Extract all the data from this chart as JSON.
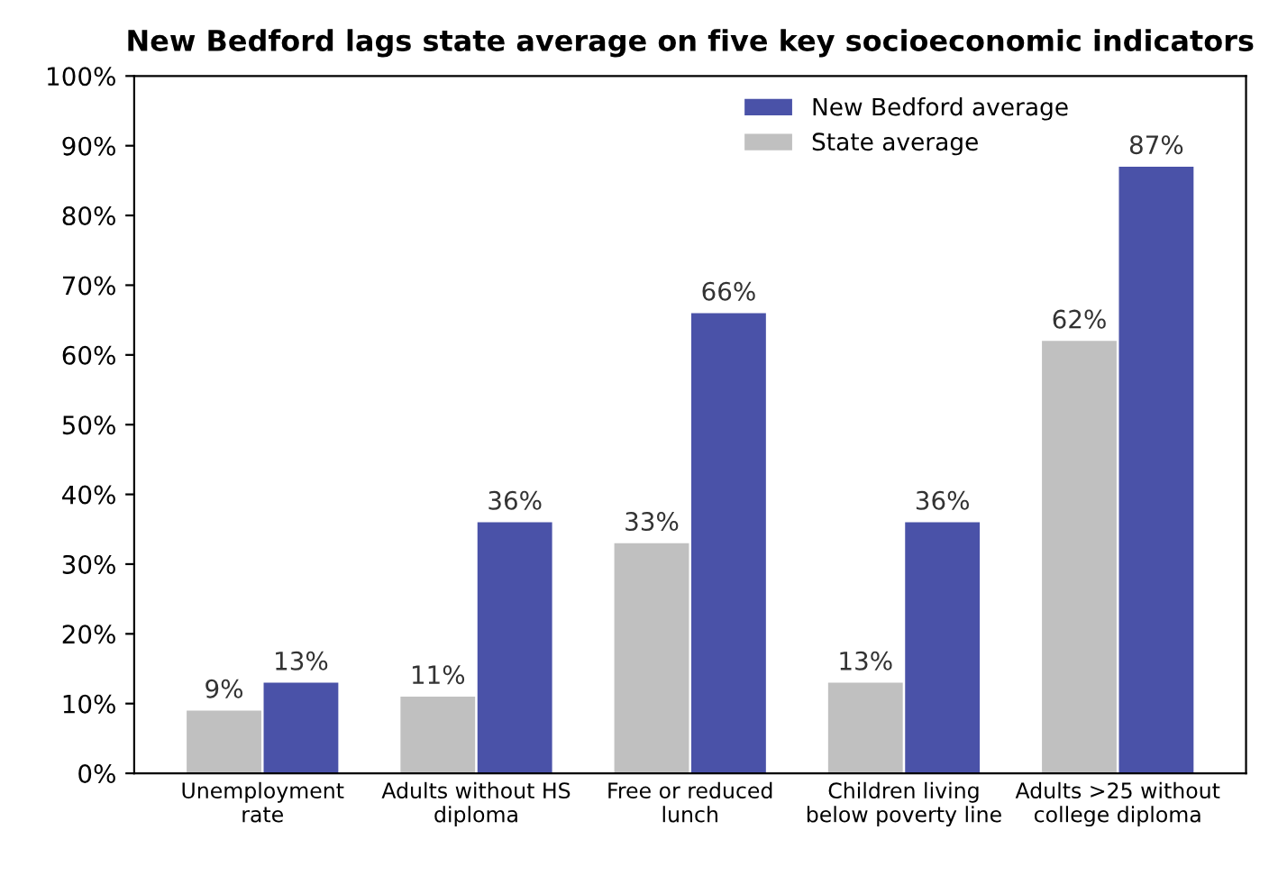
{
  "chart_data": {
    "type": "bar",
    "title": "New Bedford lags state average on five key socioeconomic indicators",
    "categories": [
      "Unemployment\nrate",
      "Adults without HS\ndiploma",
      "Free or reduced\nlunch",
      "Children living\nbelow poverty line",
      "Adults >25 without\ncollege diploma"
    ],
    "series": [
      {
        "name": "State average",
        "color": "#c0c0c0",
        "values": [
          9,
          11,
          33,
          13,
          62
        ],
        "value_labels": [
          "9%",
          "11%",
          "33%",
          "13%",
          "62%"
        ]
      },
      {
        "name": "New Bedford average",
        "color": "#4a52a8",
        "values": [
          13,
          36,
          66,
          36,
          87
        ],
        "value_labels": [
          "13%",
          "36%",
          "66%",
          "36%",
          "87%"
        ]
      }
    ],
    "ylim": [
      0,
      100
    ],
    "yticks": [
      {
        "value": 0,
        "label": "0%"
      },
      {
        "value": 10,
        "label": "10%"
      },
      {
        "value": 20,
        "label": "20%"
      },
      {
        "value": 30,
        "label": "30%"
      },
      {
        "value": 40,
        "label": "40%"
      },
      {
        "value": 50,
        "label": "50%"
      },
      {
        "value": 60,
        "label": "60%"
      },
      {
        "value": 70,
        "label": "70%"
      },
      {
        "value": 80,
        "label": "80%"
      },
      {
        "value": 90,
        "label": "90%"
      },
      {
        "value": 100,
        "label": "100%"
      }
    ],
    "grid": false,
    "legend": "top right"
  }
}
